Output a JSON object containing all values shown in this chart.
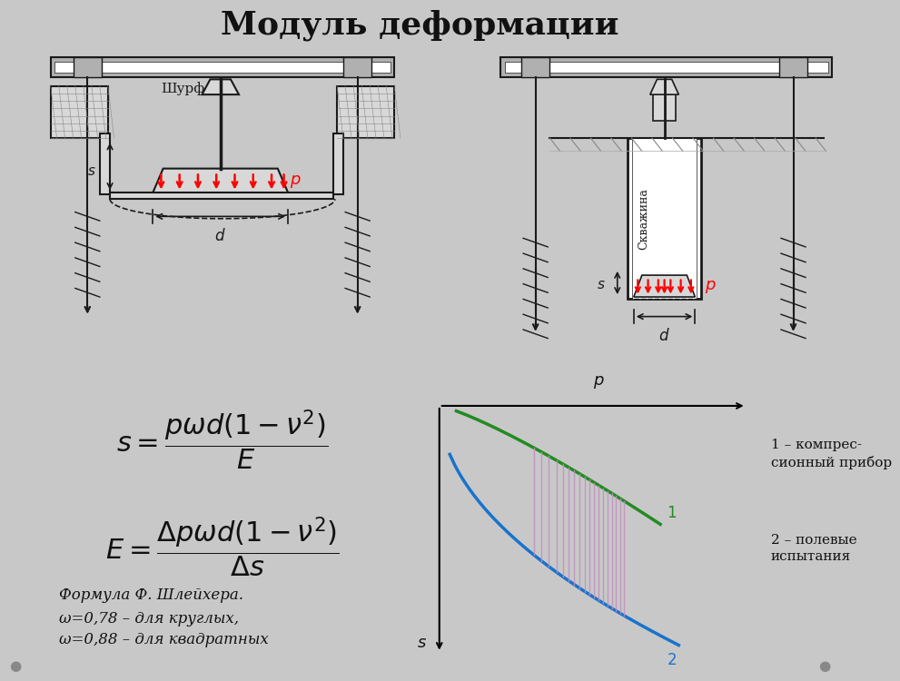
{
  "title": "Модуль деформации",
  "title_fontsize": 26,
  "bg_color": "#c8c8c8",
  "white": "#ffffff",
  "diagram_bg": "#f0f0f0",
  "curve1_color": "#228B22",
  "curve2_color": "#1873CC",
  "shading_color": "#C090C0",
  "note_line1": "Формула Ф. Шлейхера.",
  "note_line2": "ω=0,78 – для круглых,",
  "note_line3": "ω=0,88 – для квадратных",
  "legend1": "1 – компрес-\nсионный прибор",
  "legend2": "2 – полевые\nиспытания"
}
